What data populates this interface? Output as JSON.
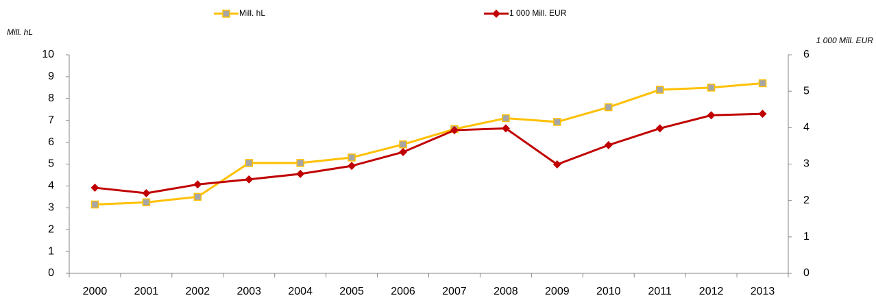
{
  "chart_data": {
    "type": "line",
    "categories": [
      "2000",
      "2001",
      "2002",
      "2003",
      "2004",
      "2005",
      "2006",
      "2007",
      "2008",
      "2009",
      "2010",
      "2011",
      "2012",
      "2013"
    ],
    "y_label": "Mill. hL",
    "y2_label": "1 000 Mill. EUR",
    "ylim": [
      0,
      10
    ],
    "yticks": [
      0,
      1,
      2,
      3,
      4,
      5,
      6,
      7,
      8,
      9,
      10
    ],
    "y2lim": [
      0,
      6
    ],
    "y2ticks": [
      0,
      1,
      2,
      3,
      4,
      5,
      6
    ],
    "grid": false,
    "legend": "top",
    "series": [
      {
        "name": "Mill. hL",
        "color": "#ffc000",
        "marker_fill": "#a6a6a6",
        "values": [
          3.15,
          3.25,
          3.5,
          5.05,
          5.05,
          5.3,
          5.9,
          6.6,
          7.1,
          6.93,
          7.6,
          8.4,
          8.5,
          8.7
        ]
      },
      {
        "name": "1 000 Mill. EUR",
        "color": "#c00000",
        "axis": "y2",
        "values": [
          2.35,
          2.2,
          2.44,
          2.58,
          2.73,
          2.95,
          3.33,
          3.93,
          3.98,
          2.99,
          3.52,
          3.98,
          4.34,
          4.38
        ]
      }
    ]
  }
}
